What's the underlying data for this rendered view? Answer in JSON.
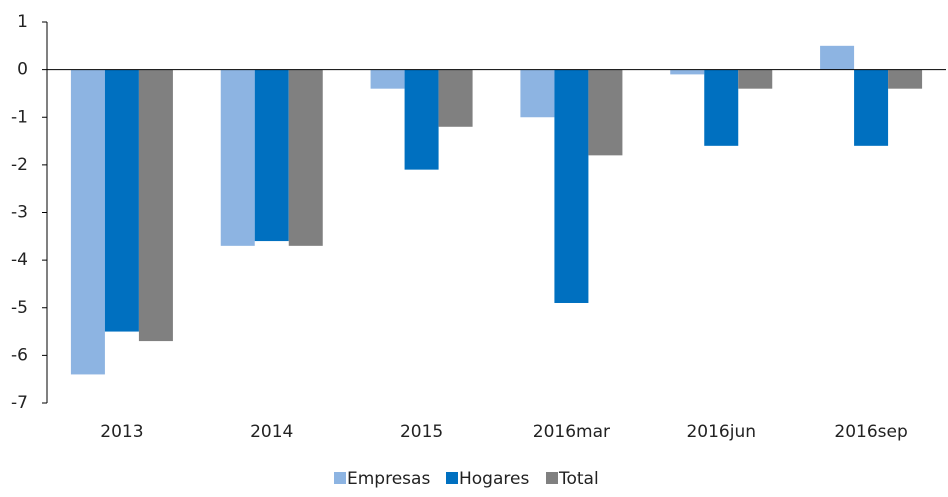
{
  "chart_data": {
    "type": "bar",
    "categories": [
      "2013",
      "2014",
      "2015",
      "2016mar",
      "2016jun",
      "2016sep"
    ],
    "series": [
      {
        "name": "Empresas",
        "color": "#8db4e2",
        "values": [
          -6.4,
          -3.7,
          -0.4,
          -1.0,
          -0.1,
          0.5
        ]
      },
      {
        "name": "Hogares",
        "color": "#0070c0",
        "values": [
          -5.5,
          -3.6,
          -2.1,
          -4.9,
          -1.6,
          -1.6
        ]
      },
      {
        "name": "Total",
        "color": "#808080",
        "values": [
          -5.7,
          -3.7,
          -1.2,
          -1.8,
          -0.4,
          -0.4
        ]
      }
    ],
    "ylim": [
      -7,
      1
    ],
    "yticks": [
      -7,
      -6,
      -5,
      -4,
      -3,
      -2,
      -1,
      0,
      1
    ],
    "grid": false,
    "legend": "bottom"
  }
}
